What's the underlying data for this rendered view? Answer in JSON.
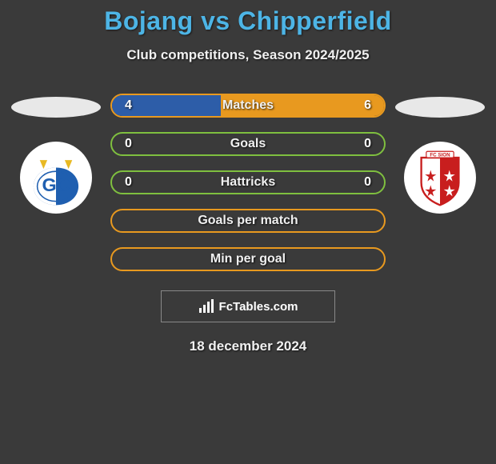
{
  "title": "Bojang vs Chipperfield",
  "subtitle": "Club competitions, Season 2024/2025",
  "date": "18 december 2024",
  "attribution": "FcTables.com",
  "colors": {
    "title": "#4db5e6",
    "background": "#3a3a3a",
    "text": "#f0f0f0",
    "left_fill": "#2d5da8",
    "right_fill": "#e8991f",
    "border_green": "#7fbf3f",
    "border_orange": "#e8991f",
    "oval": "#e8e8e8"
  },
  "players": {
    "left": {
      "name": "Bojang",
      "club": "Grasshoppers"
    },
    "right": {
      "name": "Chipperfield",
      "club": "FC Sion"
    }
  },
  "stats": [
    {
      "label": "Matches",
      "left_value": "4",
      "right_value": "6",
      "left_pct": 40,
      "right_pct": 60,
      "left_color": "#2d5da8",
      "right_color": "#e8991f",
      "border_color": "#e8991f",
      "show_left": true,
      "show_right": true
    },
    {
      "label": "Goals",
      "left_value": "0",
      "right_value": "0",
      "left_pct": 0,
      "right_pct": 0,
      "left_color": "#2d5da8",
      "right_color": "#e8991f",
      "border_color": "#7fbf3f",
      "show_left": true,
      "show_right": true
    },
    {
      "label": "Hattricks",
      "left_value": "0",
      "right_value": "0",
      "left_pct": 0,
      "right_pct": 0,
      "left_color": "#2d5da8",
      "right_color": "#e8991f",
      "border_color": "#7fbf3f",
      "show_left": true,
      "show_right": true
    },
    {
      "label": "Goals per match",
      "left_value": "",
      "right_value": "",
      "left_pct": 0,
      "right_pct": 0,
      "left_color": "#2d5da8",
      "right_color": "#e8991f",
      "border_color": "#e8991f",
      "show_left": false,
      "show_right": false
    },
    {
      "label": "Min per goal",
      "left_value": "",
      "right_value": "",
      "left_pct": 0,
      "right_pct": 0,
      "left_color": "#2d5da8",
      "right_color": "#e8991f",
      "border_color": "#e8991f",
      "show_left": false,
      "show_right": false
    }
  ]
}
